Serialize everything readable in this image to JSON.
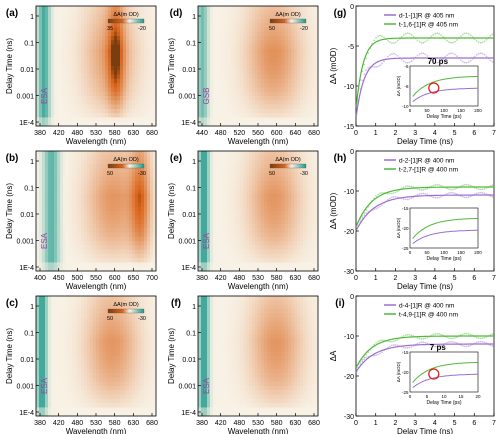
{
  "chart_data": [
    {
      "type": "heatmap",
      "panel": "(a)",
      "xlabel": "Wavelength (nm)",
      "ylabel": "Delay Time (ns)",
      "xticks": [
        "380",
        "420",
        "480",
        "530",
        "580",
        "630",
        "680"
      ],
      "yticks": [
        "1",
        "0.1",
        "0.01",
        "0.001",
        "1E-4"
      ],
      "xlim": [
        380,
        680
      ],
      "yscale": "log",
      "colorbar": {
        "title": "ΔA(m OD)",
        "max": "35",
        "min": "-20"
      },
      "side_label": "ESA",
      "bands": [
        {
          "center": 400,
          "width": 30,
          "intensity": -0.8
        },
        {
          "center": 565,
          "width": 130,
          "intensity": 0.75
        },
        {
          "center": 580,
          "width": 40,
          "intensity": 0.95
        }
      ]
    },
    {
      "type": "heatmap",
      "panel": "(b)",
      "xlabel": "Wavelength (nm)",
      "ylabel": "Delay Time (ns)",
      "xticks": [
        "400",
        "450",
        "500",
        "550",
        "600",
        "650",
        "700"
      ],
      "yticks": [
        "1",
        "0.1",
        "0.01",
        "0.001",
        "1E-4"
      ],
      "xlim": [
        390,
        700
      ],
      "yscale": "log",
      "colorbar": {
        "title": "ΔA(m OD)",
        "max": "50",
        "min": "-30"
      },
      "side_label": "ESA",
      "bands": [
        {
          "center": 430,
          "width": 40,
          "intensity": -0.7
        },
        {
          "center": 590,
          "width": 140,
          "intensity": 0.8
        },
        {
          "center": 660,
          "width": 50,
          "intensity": 1.0
        }
      ]
    },
    {
      "type": "heatmap",
      "panel": "(c)",
      "xlabel": "Wavelength (nm)",
      "ylabel": "Delay Time (ns)",
      "xticks": [
        "380",
        "420",
        "480",
        "530",
        "580",
        "630",
        "680"
      ],
      "yticks": [
        "1",
        "0.1",
        "0.01",
        "0.001",
        "1E-4"
      ],
      "xlim": [
        380,
        680
      ],
      "yscale": "log",
      "colorbar": {
        "title": "ΔA(m OD)",
        "max": "50",
        "min": "-30"
      },
      "side_label": "ESA",
      "bands": [
        {
          "center": 395,
          "width": 25,
          "intensity": -0.9
        },
        {
          "center": 570,
          "width": 130,
          "intensity": 0.8
        }
      ]
    },
    {
      "type": "heatmap",
      "panel": "(d)",
      "xlabel": "Wavelength (nm)",
      "ylabel": "Delay Time (ns)",
      "xticks": [
        "440",
        "480",
        "520",
        "560",
        "600",
        "640",
        "680"
      ],
      "yticks": [
        "1",
        "0.1",
        "0.01",
        "0.001",
        "1E-4"
      ],
      "xlim": [
        410,
        680
      ],
      "yscale": "log",
      "colorbar": {
        "title": "ΔA(m OD)",
        "max": "50",
        "min": "-20"
      },
      "side_label": "GSB",
      "bands": [
        {
          "center": 420,
          "width": 25,
          "intensity": -0.6
        },
        {
          "center": 580,
          "width": 120,
          "intensity": 0.85
        }
      ]
    },
    {
      "type": "heatmap",
      "panel": "(e)",
      "xlabel": "Wavelength (nm)",
      "ylabel": "Delay Time (ns)",
      "xticks": [
        "380",
        "420",
        "480",
        "530",
        "580",
        "630",
        "680"
      ],
      "yticks": [
        "1",
        "0.1",
        "0.01",
        "0.001",
        "1E-4"
      ],
      "xlim": [
        380,
        680
      ],
      "yscale": "log",
      "colorbar": {
        "title": "ΔA(m OD)",
        "max": "50",
        "min": "-30"
      },
      "side_label": "ESA",
      "bands": [
        {
          "center": 395,
          "width": 25,
          "intensity": -0.9
        },
        {
          "center": 570,
          "width": 130,
          "intensity": 0.8
        }
      ]
    },
    {
      "type": "heatmap",
      "panel": "(f)",
      "xlabel": "Wavelength (nm)",
      "ylabel": "Delay Time (ns)",
      "xticks": [
        "380",
        "420",
        "480",
        "530",
        "580",
        "630",
        "680"
      ],
      "yticks": [
        "1",
        "0.1",
        "0.01",
        "0.001",
        "1E-4"
      ],
      "xlim": [
        380,
        680
      ],
      "yscale": "log",
      "colorbar": null,
      "side_label": "ESA",
      "bands": [
        {
          "center": 395,
          "width": 25,
          "intensity": -0.9
        },
        {
          "center": 575,
          "width": 130,
          "intensity": 0.8
        }
      ]
    },
    {
      "type": "line",
      "panel": "(g)",
      "xlabel": "Delay Time (ns)",
      "ylabel": "ΔA (mOD)",
      "xlim": [
        0,
        7
      ],
      "ylim": [
        -15,
        0
      ],
      "xticks": [
        "0",
        "1",
        "2",
        "3",
        "4",
        "5",
        "6",
        "7"
      ],
      "yticks": [
        "0",
        "-5",
        "-10",
        "-15"
      ],
      "series": [
        {
          "name": "d-1-[1]R @ 405 nm",
          "color": "#9b6fd0",
          "y0": -14,
          "yinf": -6.5,
          "tau": 0.4
        },
        {
          "name": "t-1,6-[1]R @ 405 nm",
          "color": "#4fb83a",
          "y0": -13,
          "yinf": -4,
          "tau": 0.35
        }
      ],
      "inset": {
        "xlabel": "Delay Time (ps)",
        "ylabel": "ΔA (mOD)",
        "xlim": [
          0,
          200
        ],
        "ylim": [
          -10,
          -6
        ],
        "xticks": [
          "0",
          "50",
          "100",
          "150",
          "200"
        ],
        "yticks": [
          "-6",
          "-8",
          "-10"
        ],
        "annotation": "70 ps",
        "marker_x": 70
      }
    },
    {
      "type": "line",
      "panel": "(h)",
      "xlabel": "Delay Time (ns)",
      "ylabel": "ΔA (mOD)",
      "xlim": [
        0,
        7
      ],
      "ylim": [
        -30,
        0
      ],
      "xticks": [
        "0",
        "1",
        "2",
        "3",
        "4",
        "5",
        "6",
        "7"
      ],
      "yticks": [
        "0",
        "-10",
        "-20",
        "-30"
      ],
      "series": [
        {
          "name": "d-2-[1]R @ 400 nm",
          "color": "#9b6fd0",
          "y0": -20,
          "yinf": -11,
          "tau": 0.9
        },
        {
          "name": "t-2,7-[1]R @ 400 nm",
          "color": "#4fb83a",
          "y0": -19,
          "yinf": -9,
          "tau": 0.8
        }
      ],
      "inset": {
        "xlabel": "Delay Time (ps)",
        "ylabel": "ΔA (mOD)",
        "xlim": [
          0,
          200
        ],
        "ylim": [
          -25,
          -15
        ],
        "xticks": [
          "0",
          "50",
          "100",
          "150",
          "200"
        ],
        "yticks": [
          "-15",
          "-20",
          "-25"
        ],
        "annotation": "",
        "marker_x": null
      }
    },
    {
      "type": "line",
      "panel": "(i)",
      "xlabel": "Delay Time (ns)",
      "ylabel": "ΔA",
      "xlim": [
        0,
        7
      ],
      "ylim": [
        -30,
        0
      ],
      "xticks": [
        "0",
        "1",
        "2",
        "3",
        "4",
        "5",
        "6",
        "7"
      ],
      "yticks": [
        "0",
        "-10",
        "-20",
        "-30"
      ],
      "series": [
        {
          "name": "d-4-[1]R @ 400 nm",
          "color": "#9b6fd0",
          "y0": -19,
          "yinf": -12,
          "tau": 0.9
        },
        {
          "name": "t-4,9-[1]R @ 400 nm",
          "color": "#4fb83a",
          "y0": -18,
          "yinf": -10,
          "tau": 0.8
        }
      ],
      "inset": {
        "xlabel": "Delay Time (ps)",
        "ylabel": "ΔA (mOD)",
        "xlim": [
          0,
          20
        ],
        "ylim": [
          -25,
          -15
        ],
        "xticks": [
          "0",
          "5",
          "10",
          "15",
          "20"
        ],
        "yticks": [
          "-15",
          "-20",
          "-25"
        ],
        "annotation": "7 ps",
        "marker_x": 7
      }
    }
  ],
  "colors": {
    "positive": "#d9641a",
    "positive_dark": "#7a3d10",
    "negative": "#1a9b8c",
    "background": "#f8f2e6",
    "series_a": "#9b6fd0",
    "series_b": "#4fb83a",
    "side_label": "#a040a0",
    "marker": "#e02020"
  }
}
